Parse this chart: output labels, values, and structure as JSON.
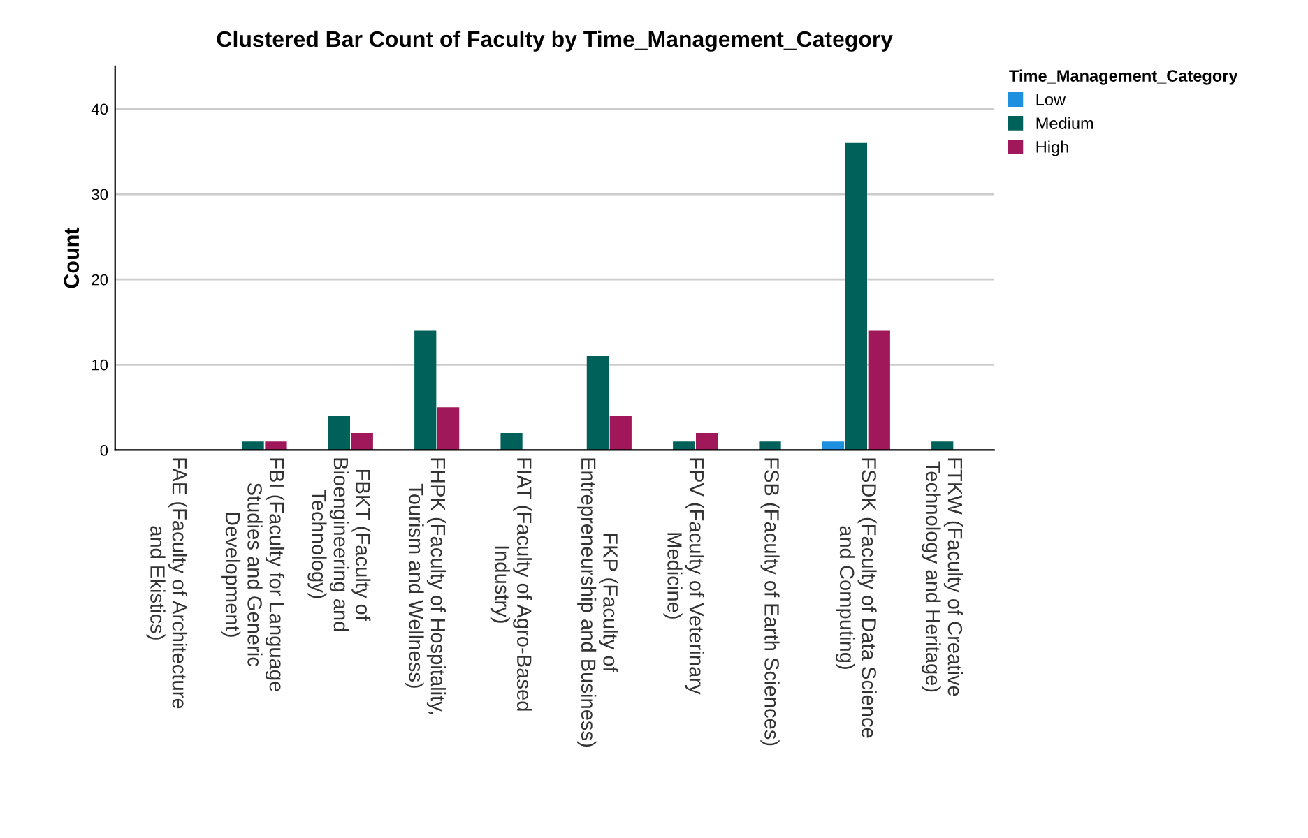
{
  "chart_data": {
    "type": "bar",
    "title": "Clustered Bar Count of Faculty by Time_Management_Category",
    "ylabel": "Count",
    "legend_title": "Time_Management_Category",
    "legend": "top right",
    "grid": "y",
    "categories": [
      "FAE (Faculty of Architecture\nand Ekistics)",
      "FBI (Faculty for Language\nStudies and Generic\nDevelopment)",
      "FBKT (Faculty of\nBioengineering and\nTechnology)",
      "FHPK (Faculty of Hospitality,\nTourism and Wellness)",
      "FIAT (Faculty of Agro-Based\nIndustry)",
      "FKP (Faculty of\nEntrepreneurship and Business)",
      "FPV (Faculty of Veterinary\nMedicine)",
      "FSB (Faculty of Earth Sciences)",
      "FSDK (Faculty of Data Science\nand Computing)",
      "FTKW (Faculty of Creative\nTechnology and Heritage)"
    ],
    "series": [
      {
        "name": "Low",
        "color": "#1f8fe0",
        "values": [
          0,
          0,
          0,
          0,
          0,
          0,
          0,
          0,
          1,
          0
        ]
      },
      {
        "name": "Medium",
        "color": "#00605a",
        "values": [
          0,
          1,
          4,
          14,
          2,
          11,
          1,
          1,
          36,
          1
        ]
      },
      {
        "name": "High",
        "color": "#a0185a",
        "values": [
          0,
          1,
          2,
          5,
          0,
          4,
          2,
          0,
          14,
          0
        ]
      }
    ],
    "ylim": [
      0,
      45
    ],
    "yticks": [
      0,
      10,
      20,
      30,
      40
    ]
  }
}
